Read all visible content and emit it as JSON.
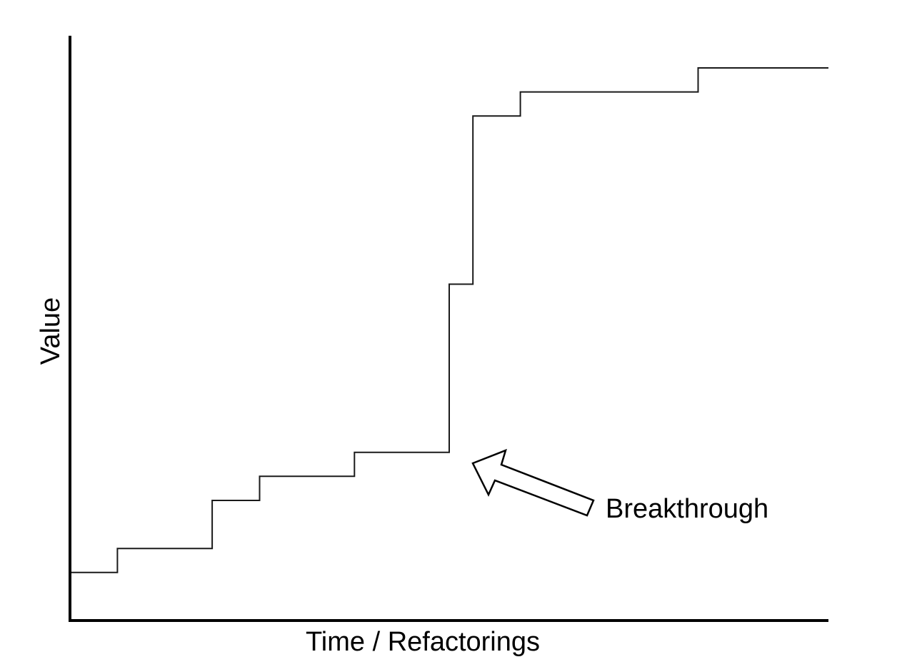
{
  "chart_data": {
    "type": "line",
    "style": "step",
    "title": "",
    "xlabel": "Time / Refactorings",
    "ylabel": "Value",
    "xlim": [
      0,
      16
    ],
    "ylim": [
      0,
      23
    ],
    "grid": false,
    "ticks": false,
    "series": [
      {
        "name": "Value",
        "steps": [
          {
            "x": 0,
            "y": 2
          },
          {
            "x": 1,
            "y": 3
          },
          {
            "x": 3,
            "y": 5
          },
          {
            "x": 4,
            "y": 6
          },
          {
            "x": 6,
            "y": 7
          },
          {
            "x": 8,
            "y": 14
          },
          {
            "x": 8.5,
            "y": 21
          },
          {
            "x": 9.5,
            "y": 22
          },
          {
            "x": 13.25,
            "y": 23
          }
        ],
        "x_end": 16
      }
    ],
    "annotations": [
      {
        "text": "Breakthrough",
        "points_to": {
          "x": 8.5,
          "y": 7
        }
      }
    ]
  }
}
